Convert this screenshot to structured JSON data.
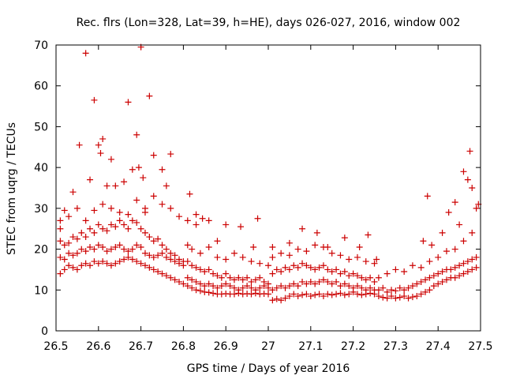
{
  "chart_data": {
    "type": "scatter",
    "title": "Rec. flrs (Lon=328, Lat=39, h=HE), days 026-027, 2016, window 002",
    "xlabel": "GPS time / Days of year 2016",
    "ylabel": "STEC from uqrg / TECUs",
    "xlim": [
      26.5,
      27.5
    ],
    "ylim": [
      0,
      70
    ],
    "xticks": [
      26.5,
      26.6,
      26.7,
      26.8,
      26.9,
      27.0,
      27.1,
      27.2,
      27.3,
      27.4,
      27.5
    ],
    "xtick_labels": [
      "26.5",
      "26.6",
      "26.7",
      "26.8",
      "26.9",
      "27",
      "27.1",
      "27.2",
      "27.3",
      "27.4",
      "27.5"
    ],
    "yticks": [
      0,
      10,
      20,
      30,
      40,
      50,
      60,
      70
    ],
    "ytick_labels": [
      "0",
      "10",
      "20",
      "30",
      "40",
      "50",
      "60",
      "70"
    ],
    "grid": false,
    "marker": "+",
    "color": "#cc0000",
    "x": [
      26.51,
      26.52,
      26.53,
      26.54,
      26.55,
      26.56,
      26.57,
      26.58,
      26.59,
      26.6,
      26.61,
      26.62,
      26.63,
      26.64,
      26.65,
      26.66,
      26.67,
      26.68,
      26.69,
      26.7,
      26.71,
      26.72,
      26.73,
      26.74,
      26.75,
      26.76,
      26.77,
      26.78,
      26.79,
      26.8,
      26.51,
      26.52,
      26.53,
      26.54,
      26.55,
      26.56,
      26.57,
      26.58,
      26.59,
      26.6,
      26.61,
      26.62,
      26.63,
      26.64,
      26.65,
      26.66,
      26.67,
      26.68,
      26.69,
      26.7,
      26.71,
      26.72,
      26.73,
      26.74,
      26.75,
      26.76,
      26.77,
      26.78,
      26.79,
      26.8,
      26.51,
      26.52,
      26.53,
      26.54,
      26.55,
      26.56,
      26.57,
      26.58,
      26.59,
      26.6,
      26.61,
      26.62,
      26.63,
      26.64,
      26.65,
      26.66,
      26.67,
      26.68,
      26.69,
      26.7,
      26.71,
      26.72,
      26.73,
      26.74,
      26.75,
      26.76,
      26.77,
      26.78,
      26.79,
      26.8,
      26.51,
      26.53,
      26.55,
      26.57,
      26.59,
      26.61,
      26.63,
      26.65,
      26.67,
      26.69,
      26.71,
      26.73,
      26.75,
      26.77,
      26.79,
      26.81,
      26.83,
      26.51,
      26.52,
      26.54,
      26.555,
      26.57,
      26.58,
      26.59,
      26.6,
      26.605,
      26.61,
      26.62,
      26.63,
      26.64,
      26.66,
      26.67,
      26.68,
      26.69,
      26.695,
      26.7,
      26.705,
      26.71,
      26.72,
      26.73,
      26.75,
      26.76,
      26.77,
      26.81,
      26.82,
      26.83,
      26.84,
      26.85,
      26.86,
      26.87,
      26.88,
      26.89,
      26.9,
      26.91,
      26.92,
      26.93,
      26.94,
      26.95,
      26.96,
      26.97,
      26.98,
      26.99,
      27.0,
      26.81,
      26.82,
      26.83,
      26.84,
      26.85,
      26.86,
      26.87,
      26.88,
      26.89,
      26.9,
      26.91,
      26.92,
      26.93,
      26.94,
      26.95,
      26.96,
      26.97,
      26.98,
      26.99,
      27.0,
      26.81,
      26.82,
      26.83,
      26.84,
      26.85,
      26.86,
      26.87,
      26.88,
      26.89,
      26.9,
      26.91,
      26.92,
      26.93,
      26.94,
      26.95,
      26.96,
      26.97,
      26.98,
      26.99,
      27.0,
      26.81,
      26.82,
      26.84,
      26.86,
      26.88,
      26.9,
      26.92,
      26.94,
      26.96,
      26.98,
      27.0,
      26.815,
      26.83,
      26.845,
      26.86,
      26.88,
      26.9,
      26.935,
      26.965,
      26.975,
      27.01,
      27.02,
      27.03,
      27.04,
      27.05,
      27.06,
      27.07,
      27.08,
      27.09,
      27.1,
      27.11,
      27.12,
      27.13,
      27.14,
      27.15,
      27.16,
      27.17,
      27.18,
      27.19,
      27.2,
      27.21,
      27.22,
      27.23,
      27.24,
      27.25,
      27.01,
      27.02,
      27.03,
      27.04,
      27.05,
      27.06,
      27.07,
      27.08,
      27.09,
      27.1,
      27.11,
      27.12,
      27.13,
      27.14,
      27.15,
      27.16,
      27.17,
      27.18,
      27.19,
      27.2,
      27.21,
      27.22,
      27.23,
      27.24,
      27.25,
      27.01,
      27.02,
      27.03,
      27.04,
      27.05,
      27.06,
      27.07,
      27.08,
      27.09,
      27.1,
      27.11,
      27.12,
      27.13,
      27.14,
      27.15,
      27.16,
      27.17,
      27.18,
      27.19,
      27.2,
      27.21,
      27.22,
      27.23,
      27.24,
      27.25,
      27.01,
      27.03,
      27.05,
      27.07,
      27.09,
      27.11,
      27.13,
      27.15,
      27.17,
      27.19,
      27.21,
      27.23,
      27.25,
      27.01,
      27.05,
      27.08,
      27.115,
      27.14,
      27.18,
      27.215,
      27.235,
      27.255,
      27.26,
      27.27,
      27.28,
      27.29,
      27.3,
      27.31,
      27.32,
      27.33,
      27.34,
      27.35,
      27.36,
      27.37,
      27.38,
      27.39,
      27.4,
      27.41,
      27.42,
      27.43,
      27.44,
      27.45,
      27.46,
      27.47,
      27.48,
      27.49,
      27.26,
      27.27,
      27.28,
      27.29,
      27.3,
      27.31,
      27.32,
      27.33,
      27.34,
      27.35,
      27.36,
      27.37,
      27.38,
      27.39,
      27.4,
      27.41,
      27.42,
      27.43,
      27.44,
      27.45,
      27.46,
      27.47,
      27.48,
      27.49,
      27.26,
      27.28,
      27.3,
      27.32,
      27.34,
      27.36,
      27.38,
      27.4,
      27.42,
      27.44,
      27.46,
      27.48,
      27.365,
      27.375,
      27.385,
      27.41,
      27.425,
      27.44,
      27.45,
      27.46,
      27.47,
      27.475,
      27.48,
      27.49,
      27.495
    ],
    "y": [
      14,
      15,
      16,
      15.5,
      15,
      16,
      16.5,
      16,
      17,
      16.5,
      17,
      16.5,
      16,
      16.5,
      17,
      17.5,
      18,
      17.5,
      17,
      16.5,
      16,
      15.5,
      15,
      14.5,
      14,
      13.5,
      13,
      12.5,
      12,
      11.5,
      18,
      17.5,
      19,
      18.5,
      19,
      20,
      19.5,
      20.5,
      20,
      21,
      20.5,
      19.5,
      20,
      20.5,
      21,
      20,
      19.5,
      20,
      21,
      20.5,
      19,
      18.5,
      18,
      18.5,
      19,
      18,
      17.5,
      17,
      16.5,
      16,
      22,
      21,
      21.5,
      23,
      22.5,
      24,
      23,
      25,
      24,
      26,
      25,
      24.5,
      26,
      25.5,
      27,
      26,
      25,
      27,
      26.5,
      25,
      24,
      23,
      22,
      22.5,
      21,
      20,
      19,
      18.5,
      17.5,
      17,
      25,
      28,
      30,
      27,
      29.5,
      31,
      30,
      29,
      28.5,
      32,
      29,
      33,
      31,
      30,
      28,
      27,
      26,
      27,
      29.5,
      34,
      45.5,
      68,
      37,
      56.5,
      45.5,
      43.5,
      47,
      35.5,
      42,
      35.5,
      36.5,
      56,
      39.5,
      48,
      40,
      69.5,
      37.5,
      30,
      57.5,
      43,
      39.5,
      35.5,
      43.3,
      11,
      10.5,
      10,
      9.8,
      9.5,
      9.4,
      9.2,
      9.0,
      9.0,
      9.1,
      9.0,
      9.0,
      9.2,
      9.0,
      9.1,
      9.0,
      9.2,
      9.0,
      9.1,
      9.0,
      13,
      12.5,
      12,
      11.5,
      11,
      11.5,
      11,
      10.5,
      11,
      11.5,
      11,
      10.5,
      10,
      10.5,
      11,
      10.5,
      10,
      10.5,
      11,
      10.5,
      17,
      16,
      15.5,
      15,
      14.5,
      15,
      14,
      13.5,
      13,
      14,
      13,
      12.5,
      13,
      12.5,
      13,
      12,
      12.5,
      13,
      12,
      11.5,
      21,
      20,
      19,
      20.5,
      18,
      17.5,
      19,
      18,
      17,
      16.5,
      16,
      33.5,
      28.5,
      27.5,
      27,
      22,
      26,
      25.5,
      20.5,
      27.5,
      7.5,
      7.8,
      7.5,
      8,
      8.5,
      9,
      8.5,
      8.8,
      9,
      8.5,
      8.8,
      9,
      8.5,
      9,
      8.8,
      9,
      9.2,
      8.8,
      9,
      9.5,
      9,
      8.8,
      9,
      9.2,
      9,
      10,
      10.5,
      11,
      10.5,
      11,
      11.5,
      11,
      12,
      11.5,
      12,
      11.5,
      12,
      12.5,
      12,
      11.5,
      12,
      11,
      11.5,
      11,
      10.5,
      11,
      10.5,
      10,
      10.5,
      10,
      14,
      15,
      14.5,
      15.5,
      15,
      16,
      15.5,
      16.5,
      16,
      15.5,
      15,
      15.5,
      16,
      15,
      14.5,
      15,
      14,
      14.5,
      13.5,
      14,
      13.5,
      13,
      12.5,
      13,
      12,
      18,
      19,
      18.5,
      20,
      19.5,
      21,
      20.5,
      19,
      18.5,
      17.5,
      18,
      17,
      16.5,
      20.5,
      21.5,
      25,
      24,
      20.5,
      22.8,
      20.5,
      23.5,
      17.5,
      8.5,
      8.2,
      8,
      8.5,
      8,
      8.2,
      8.5,
      8,
      8.3,
      8.5,
      9,
      9.5,
      10,
      11,
      11.5,
      12,
      12.5,
      13,
      13,
      13.5,
      14,
      14.5,
      15,
      15.5,
      10,
      10.5,
      9.5,
      10,
      9.8,
      10.5,
      10,
      10.5,
      11,
      11.5,
      12,
      12.5,
      13,
      13.5,
      14,
      14.5,
      15,
      15,
      15.5,
      16,
      16.5,
      17,
      17.5,
      18,
      13,
      14,
      15,
      14.5,
      16,
      15.5,
      17,
      18,
      19.5,
      20,
      22,
      24,
      22,
      33,
      21,
      24,
      29,
      31.5,
      26,
      39,
      37,
      44,
      35,
      30,
      31
    ]
  }
}
